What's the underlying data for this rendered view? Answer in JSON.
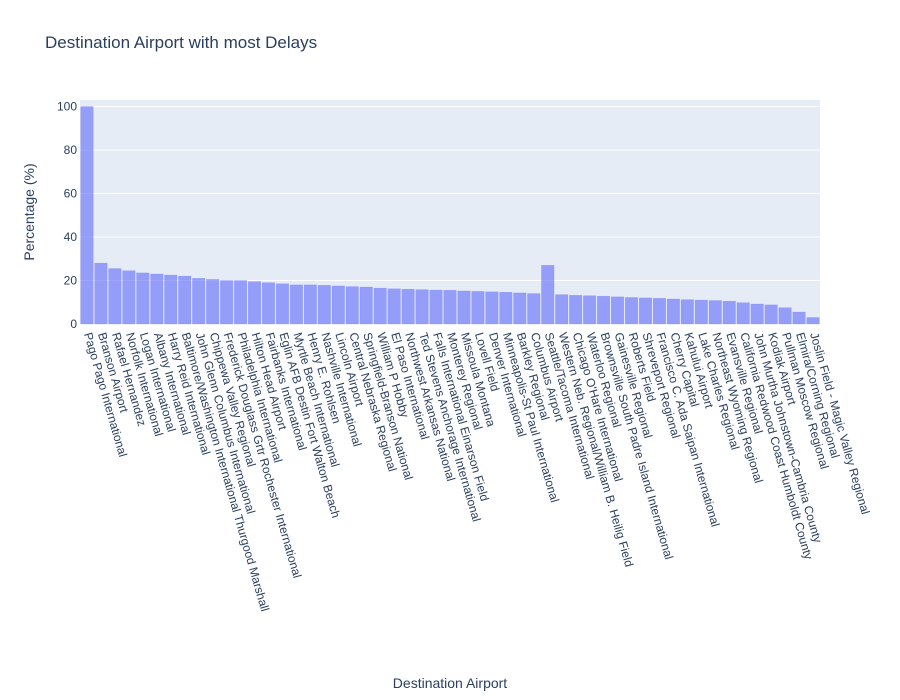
{
  "chart_data": {
    "type": "bar",
    "title": "Destination Airport with most Delays",
    "xlabel": "Destination Airport",
    "ylabel": "Percentage (%)",
    "ylim": [
      0,
      103
    ],
    "yticks": [
      0,
      20,
      40,
      60,
      80,
      100
    ],
    "grid": true,
    "legend": "none",
    "bar_color": "#636efa",
    "plot_bg": "#e5ecf6",
    "categories": [
      "Pago Pago International",
      "Branson Airport",
      "Rafael Hernandez",
      "Norfolk International",
      "Logan International",
      "Albany International",
      "Harry Reid International",
      "Baltimore/Washington International Thurgood Marshall",
      "John Glenn Columbus International",
      "Chippewa Valley Regional",
      "Frederick Douglass Grtr Rochester International",
      "Philadelphia International",
      "Hilton Head Airport",
      "Fairbanks International",
      "Eglin AFB Destin Fort Walton Beach",
      "Myrtle Beach International",
      "Henry E. Rohlsen",
      "Nashville International",
      "Lincoln Airport",
      "Central Nebraska Regional",
      "Springfield-Branson National",
      "William P Hobby",
      "El Paso International",
      "Northwest Arkansas National",
      "Ted Stevens Anchorage International",
      "Falls International Einarson Field",
      "Monterey Regional",
      "Missoula Montana",
      "Lovell Field",
      "Denver International",
      "Minneapolis-St Paul International",
      "Barkley Regional",
      "Columbus Airport",
      "Seattle/Tacoma International",
      "Western Neb. Regional/William B. Heilig Field",
      "Chicago O'Hare International",
      "Waterloo Regional",
      "Brownsville South Padre Island International",
      "Gainesville Regional",
      "Roberts Field",
      "Shreveport Regional",
      "Francisco C. Ada Saipan International",
      "Cherry Capital",
      "Kahului Airport",
      "Lake Charles Regional",
      "Northeast Wyoming Regional",
      "Evansville Regional",
      "California Redwood Coast Humboldt County",
      "John Murtha Johnstown-Cambria County",
      "Kodiak Airport",
      "Pullman Moscow Regional",
      "Elmira/Corning Regional",
      "Joslin Field - Magic Valley Regional"
    ],
    "values": [
      100,
      28,
      25.5,
      24.5,
      23.5,
      23,
      22.5,
      22,
      21,
      20.5,
      20,
      20,
      19.5,
      19,
      18.5,
      18,
      18,
      17.8,
      17.5,
      17.2,
      17,
      16.5,
      16.2,
      16,
      15.8,
      15.6,
      15.5,
      15.2,
      15,
      14.8,
      14.6,
      14.3,
      14,
      27,
      13.5,
      13.2,
      13,
      12.8,
      12.5,
      12.2,
      12,
      11.8,
      11.5,
      11.2,
      11,
      10.8,
      10.5,
      9.8,
      9.2,
      8.8,
      7.5,
      5.5,
      3
    ]
  }
}
